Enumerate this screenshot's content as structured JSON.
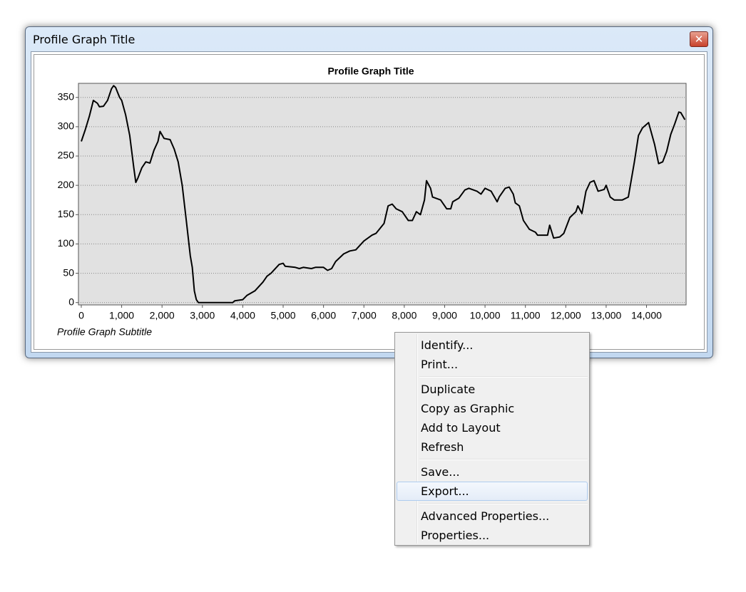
{
  "window": {
    "title": "Profile Graph Title"
  },
  "chart_data": {
    "type": "line",
    "title": "Profile Graph Title",
    "subtitle": "Profile Graph Subtitle",
    "x": [
      0,
      100,
      200,
      300,
      400,
      450,
      550,
      650,
      750,
      800,
      850,
      950,
      1000,
      1100,
      1200,
      1300,
      1350,
      1400,
      1500,
      1600,
      1700,
      1800,
      1900,
      1950,
      2050,
      2200,
      2300,
      2400,
      2500,
      2600,
      2700,
      2750,
      2800,
      2850,
      2900,
      3000,
      3500,
      3750,
      3800,
      4000,
      4100,
      4300,
      4500,
      4600,
      4700,
      4900,
      5000,
      5050,
      5300,
      5400,
      5500,
      5700,
      5800,
      6000,
      6100,
      6200,
      6300,
      6500,
      6650,
      6800,
      7000,
      7200,
      7300,
      7500,
      7600,
      7700,
      7800,
      7950,
      8100,
      8200,
      8300,
      8400,
      8500,
      8550,
      8650,
      8700,
      8900,
      9050,
      9150,
      9200,
      9350,
      9500,
      9600,
      9800,
      9900,
      10000,
      10150,
      10300,
      10350,
      10500,
      10600,
      10700,
      10750,
      10850,
      10950,
      11100,
      11250,
      11300,
      11550,
      11600,
      11700,
      11850,
      11950,
      12100,
      12250,
      12300,
      12400,
      12500,
      12600,
      12700,
      12800,
      12950,
      13000,
      13100,
      13200,
      13400,
      13550,
      13700,
      13800,
      13900,
      14050,
      14200,
      14300,
      14400,
      14500,
      14600,
      14700,
      14800,
      14850,
      14950
    ],
    "values": [
      275,
      295,
      318,
      345,
      340,
      334,
      335,
      345,
      365,
      370,
      367,
      350,
      345,
      320,
      285,
      230,
      205,
      212,
      230,
      240,
      238,
      260,
      275,
      292,
      280,
      278,
      262,
      240,
      200,
      140,
      80,
      60,
      20,
      5,
      0,
      0,
      0,
      0,
      3,
      5,
      12,
      20,
      35,
      45,
      50,
      65,
      67,
      62,
      60,
      58,
      60,
      58,
      60,
      60,
      55,
      58,
      70,
      83,
      88,
      90,
      105,
      115,
      118,
      135,
      165,
      168,
      160,
      155,
      140,
      140,
      155,
      150,
      175,
      208,
      195,
      180,
      175,
      160,
      160,
      172,
      178,
      192,
      195,
      190,
      185,
      195,
      190,
      172,
      180,
      195,
      197,
      185,
      170,
      165,
      140,
      125,
      120,
      115,
      115,
      132,
      110,
      112,
      118,
      145,
      155,
      165,
      152,
      190,
      205,
      208,
      190,
      193,
      200,
      180,
      175,
      175,
      180,
      240,
      285,
      298,
      307,
      270,
      237,
      240,
      258,
      287,
      305,
      325,
      324,
      312
    ],
    "color": "#000000",
    "xlim": [
      -70,
      14980
    ],
    "ylim": [
      -4,
      374
    ],
    "xticks": [
      0,
      {
        "value": 1000,
        "label": "1,000"
      },
      {
        "value": 2000,
        "label": "2,000"
      },
      {
        "value": 3000,
        "label": "3,000"
      },
      {
        "value": 4000,
        "label": "4,000"
      },
      {
        "value": 5000,
        "label": "5,000"
      },
      {
        "value": 6000,
        "label": "6,000"
      },
      {
        "value": 7000,
        "label": "7,000"
      },
      {
        "value": 8000,
        "label": "8,000"
      },
      {
        "value": 9000,
        "label": "9,000"
      },
      {
        "value": 10000,
        "label": "10,000"
      },
      {
        "value": 11000,
        "label": "11,000"
      },
      {
        "value": 12000,
        "label": "12,000"
      },
      {
        "value": 13000,
        "label": "13,000"
      },
      {
        "value": 14000,
        "label": "14,000"
      }
    ],
    "yticks": [
      0,
      50,
      100,
      150,
      200,
      250,
      300,
      350
    ],
    "grid": true
  },
  "menu": {
    "groups": [
      [
        "Identify...",
        "Print..."
      ],
      [
        "Duplicate",
        "Copy as Graphic",
        "Add to Layout",
        "Refresh"
      ],
      [
        "Save...",
        "Export..."
      ],
      [
        "Advanced Properties...",
        "Properties..."
      ]
    ]
  }
}
